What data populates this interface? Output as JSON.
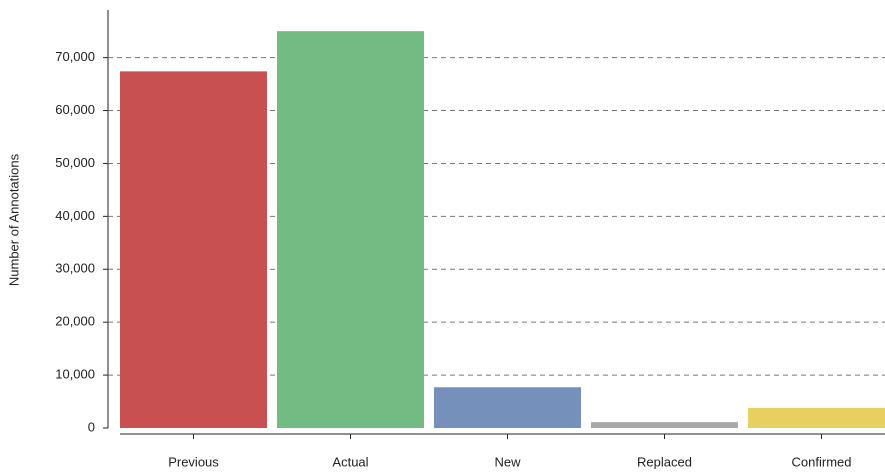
{
  "chart_data": {
    "type": "bar",
    "y_label": "Number of Annotations",
    "categories": [
      "Previous",
      "Actual",
      "New",
      "Replaced",
      "Confirmed"
    ],
    "values": [
      67400,
      75000,
      7700,
      1100,
      3800
    ],
    "colors": [
      "#c85050",
      "#72bb82",
      "#7490bb",
      "#a8a8a8",
      "#e8d060"
    ],
    "ylim": [
      0,
      79000
    ],
    "yticks": [
      0,
      {
        "value": 10000,
        "label": "10,000"
      },
      {
        "value": 20000,
        "label": "20,000"
      },
      {
        "value": 30000,
        "label": "30,000"
      },
      {
        "value": 40000,
        "label": "40,000"
      },
      {
        "value": 50000,
        "label": "50,000"
      },
      {
        "value": 60000,
        "label": "60,000"
      },
      {
        "value": 70000,
        "label": "70,000"
      }
    ],
    "grid": true
  }
}
